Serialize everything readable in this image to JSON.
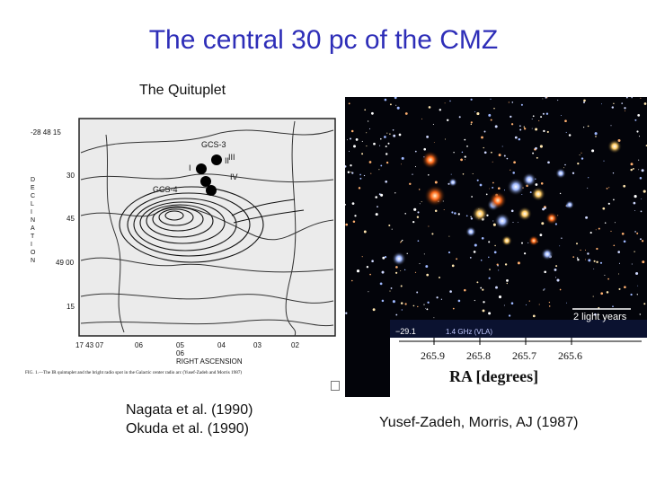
{
  "slide": {
    "title": "The central 30 pc of the CMZ",
    "subtitle": "The Quituplet",
    "left_references": [
      "Nagata et al. (1990)",
      "Okuda et al. (1990)"
    ],
    "right_reference": "Yusef-Zadeh, Morris, AJ (1987)"
  },
  "contour_map": {
    "dec_ticks": [
      "-28 48 15",
      "30",
      "45",
      "49 00",
      "15"
    ],
    "ra_ticks": [
      "17 43 07",
      "06",
      "05",
      "04",
      "03",
      "02"
    ],
    "ra_second_line": "06",
    "y_axis_label": [
      "D",
      "E",
      "C",
      "L",
      "I",
      "N",
      "A",
      "T",
      "I",
      "O",
      "N"
    ],
    "x_axis_label": "RIGHT ASCENSION",
    "labels": [
      "GCS-3",
      "GCS-4",
      "I",
      "II",
      "III",
      "IV"
    ],
    "caption": "FIG. 1.—The IR quintuplet and the bright radio spot in the Galactic center radio arc (Yusef-Zadeh and Morris 1987)"
  },
  "star_image": {
    "scale_label": "2 light years",
    "overlay_labels": [
      "−29.1",
      "1.4 GHz (VLA)"
    ],
    "ra_ticks": [
      "265.9",
      "265.8",
      "265.7",
      "265.6"
    ],
    "ra_label": "RA  [degrees]"
  }
}
